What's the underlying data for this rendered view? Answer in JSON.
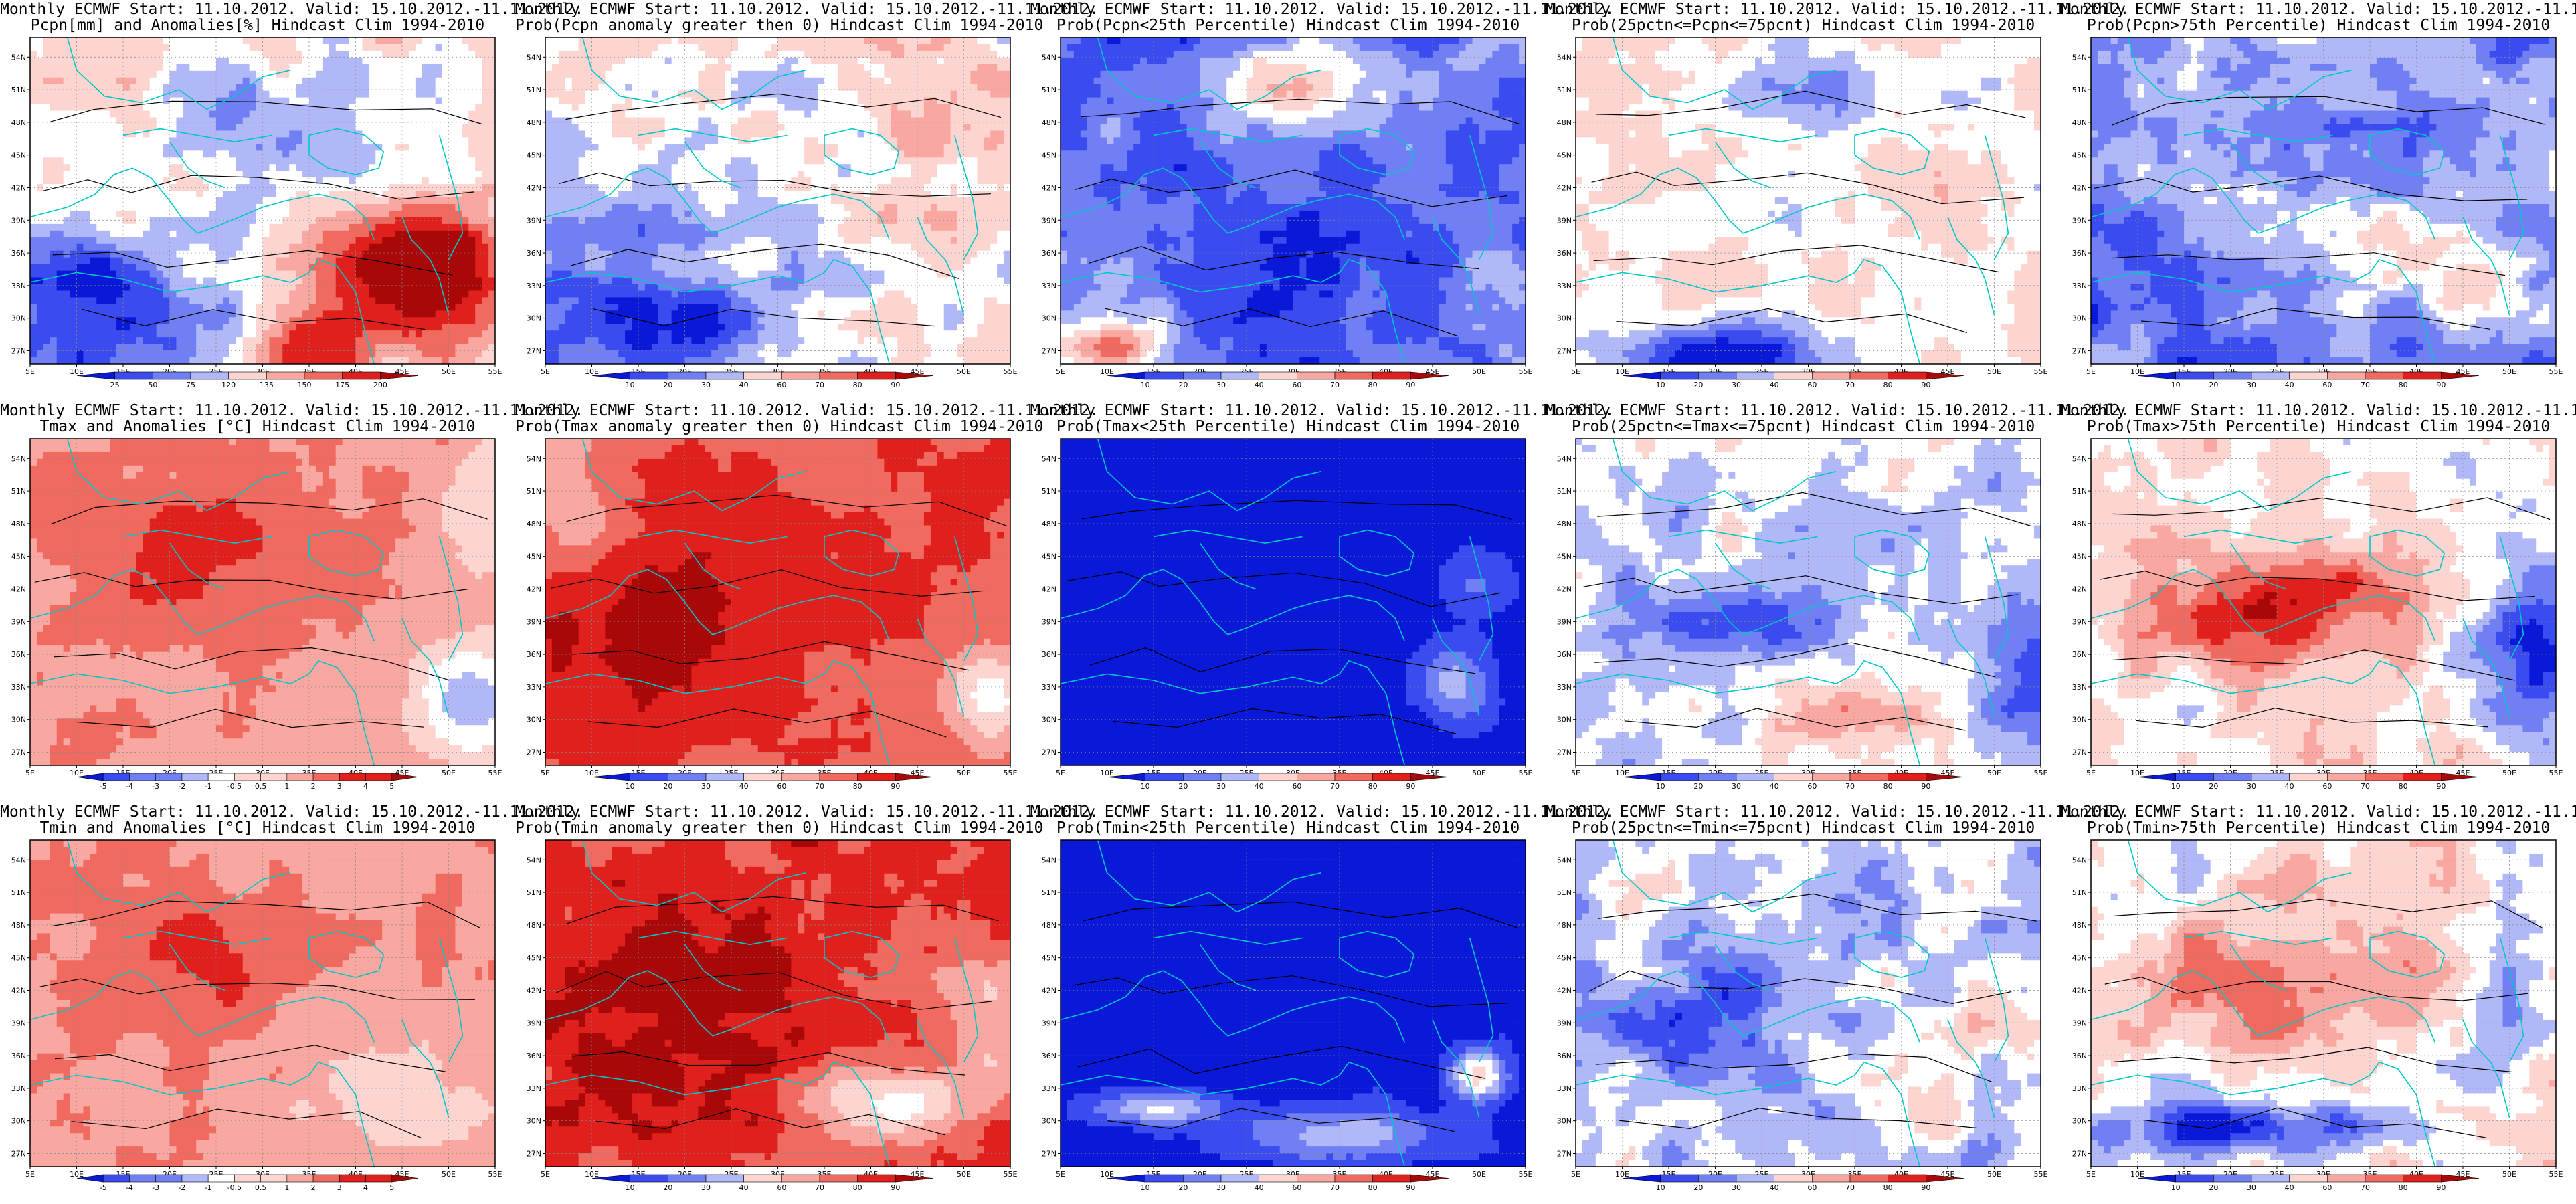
{
  "figure": {
    "common_title": "Monthly ECMWF Start: 11.10.2012. Valid: 15.10.2012.-11.11.2012.",
    "x_ticks": [
      "5E",
      "10E",
      "15E",
      "20E",
      "25E",
      "30E",
      "35E",
      "40E",
      "45E",
      "50E",
      "55E"
    ],
    "y_ticks": [
      "27N",
      "30N",
      "33N",
      "36N",
      "39N",
      "42N",
      "45N",
      "48N",
      "51N",
      "54N"
    ],
    "colors": {
      "deep_blue": "#0a18d8",
      "blue": "#3a4cf0",
      "mid_blue": "#7080f4",
      "light_blue": "#b0b8f8",
      "pale_blue": "#d8dcfc",
      "white": "#ffffff",
      "pale_red": "#fcd4d0",
      "light_red": "#f8a8a0",
      "red": "#f06a60",
      "deep_red": "#e0201c",
      "dark_red": "#a80808",
      "coast": "#00c8c8",
      "contour": "#000000"
    }
  },
  "chart_data": [
    {
      "type": "heatmap",
      "title": "Pcpn[mm] and Anomalies[%] Hindcast Clim 1994-2010",
      "colorbar_labels": [
        "25",
        "50",
        "75",
        "120",
        "135",
        "150",
        "175",
        "200"
      ],
      "pattern": "pcpn_anom"
    },
    {
      "type": "heatmap",
      "title": "Prob(Pcpn anomaly greater then 0) Hindcast Clim 1994-2010",
      "colorbar_labels": [
        "10",
        "20",
        "30",
        "40",
        "60",
        "70",
        "80",
        "90"
      ],
      "pattern": "pcpn_prob_pos"
    },
    {
      "type": "heatmap",
      "title": "Prob(Pcpn<25th Percentile) Hindcast Clim 1994-2010",
      "colorbar_labels": [
        "10",
        "20",
        "30",
        "40",
        "60",
        "70",
        "80",
        "90"
      ],
      "pattern": "pcpn_prob_low"
    },
    {
      "type": "heatmap",
      "title": "Prob(25pctn<=Pcpn<=75pcnt) Hindcast Clim 1994-2010",
      "colorbar_labels": [
        "10",
        "20",
        "30",
        "40",
        "60",
        "70",
        "80",
        "90"
      ],
      "pattern": "pcpn_prob_mid"
    },
    {
      "type": "heatmap",
      "title": "Prob(Pcpn>75th Percentile) Hindcast Clim 1994-2010",
      "colorbar_labels": [
        "10",
        "20",
        "30",
        "40",
        "60",
        "70",
        "80",
        "90"
      ],
      "pattern": "pcpn_prob_high"
    },
    {
      "type": "heatmap",
      "title": "Tmax and Anomalies [°C] Hindcast Clim 1994-2010",
      "colorbar_labels": [
        "-5",
        "-4",
        "-3",
        "-2",
        "-1",
        "-0.5",
        "0.5",
        "1",
        "2",
        "3",
        "4",
        "5"
      ],
      "pattern": "tmax_anom"
    },
    {
      "type": "heatmap",
      "title": "Prob(Tmax anomaly greater then 0) Hindcast Clim 1994-2010",
      "colorbar_labels": [
        "10",
        "20",
        "30",
        "40",
        "60",
        "70",
        "80",
        "90"
      ],
      "pattern": "tmax_prob_pos"
    },
    {
      "type": "heatmap",
      "title": "Prob(Tmax<25th Percentile) Hindcast Clim 1994-2010",
      "colorbar_labels": [
        "10",
        "20",
        "30",
        "40",
        "60",
        "70",
        "80",
        "90"
      ],
      "pattern": "tmax_prob_low"
    },
    {
      "type": "heatmap",
      "title": "Prob(25pctn<=Tmax<=75pcnt) Hindcast Clim 1994-2010",
      "colorbar_labels": [
        "10",
        "20",
        "30",
        "40",
        "60",
        "70",
        "80",
        "90"
      ],
      "pattern": "tmax_prob_mid"
    },
    {
      "type": "heatmap",
      "title": "Prob(Tmax>75th Percentile) Hindcast Clim 1994-2010",
      "colorbar_labels": [
        "10",
        "20",
        "30",
        "40",
        "60",
        "70",
        "80",
        "90"
      ],
      "pattern": "tmax_prob_high"
    },
    {
      "type": "heatmap",
      "title": "Tmin and Anomalies [°C] Hindcast Clim 1994-2010",
      "colorbar_labels": [
        "-5",
        "-4",
        "-3",
        "-2",
        "-1",
        "-0.5",
        "0.5",
        "1",
        "2",
        "3",
        "4",
        "5"
      ],
      "pattern": "tmin_anom"
    },
    {
      "type": "heatmap",
      "title": "Prob(Tmin anomaly greater then 0) Hindcast Clim 1994-2010",
      "colorbar_labels": [
        "10",
        "20",
        "30",
        "40",
        "60",
        "70",
        "80",
        "90"
      ],
      "pattern": "tmin_prob_pos"
    },
    {
      "type": "heatmap",
      "title": "Prob(Tmin<25th Percentile) Hindcast Clim 1994-2010",
      "colorbar_labels": [
        "10",
        "20",
        "30",
        "40",
        "60",
        "70",
        "80",
        "90"
      ],
      "pattern": "tmin_prob_low"
    },
    {
      "type": "heatmap",
      "title": "Prob(25pctn<=Tmin<=75pcnt) Hindcast Clim 1994-2010",
      "colorbar_labels": [
        "10",
        "20",
        "30",
        "40",
        "60",
        "70",
        "80",
        "90"
      ],
      "pattern": "tmin_prob_mid"
    },
    {
      "type": "heatmap",
      "title": "Prob(Tmin>75th Percentile) Hindcast Clim 1994-2010",
      "colorbar_labels": [
        "10",
        "20",
        "30",
        "40",
        "60",
        "70",
        "80",
        "90"
      ],
      "pattern": "tmin_prob_high"
    }
  ]
}
